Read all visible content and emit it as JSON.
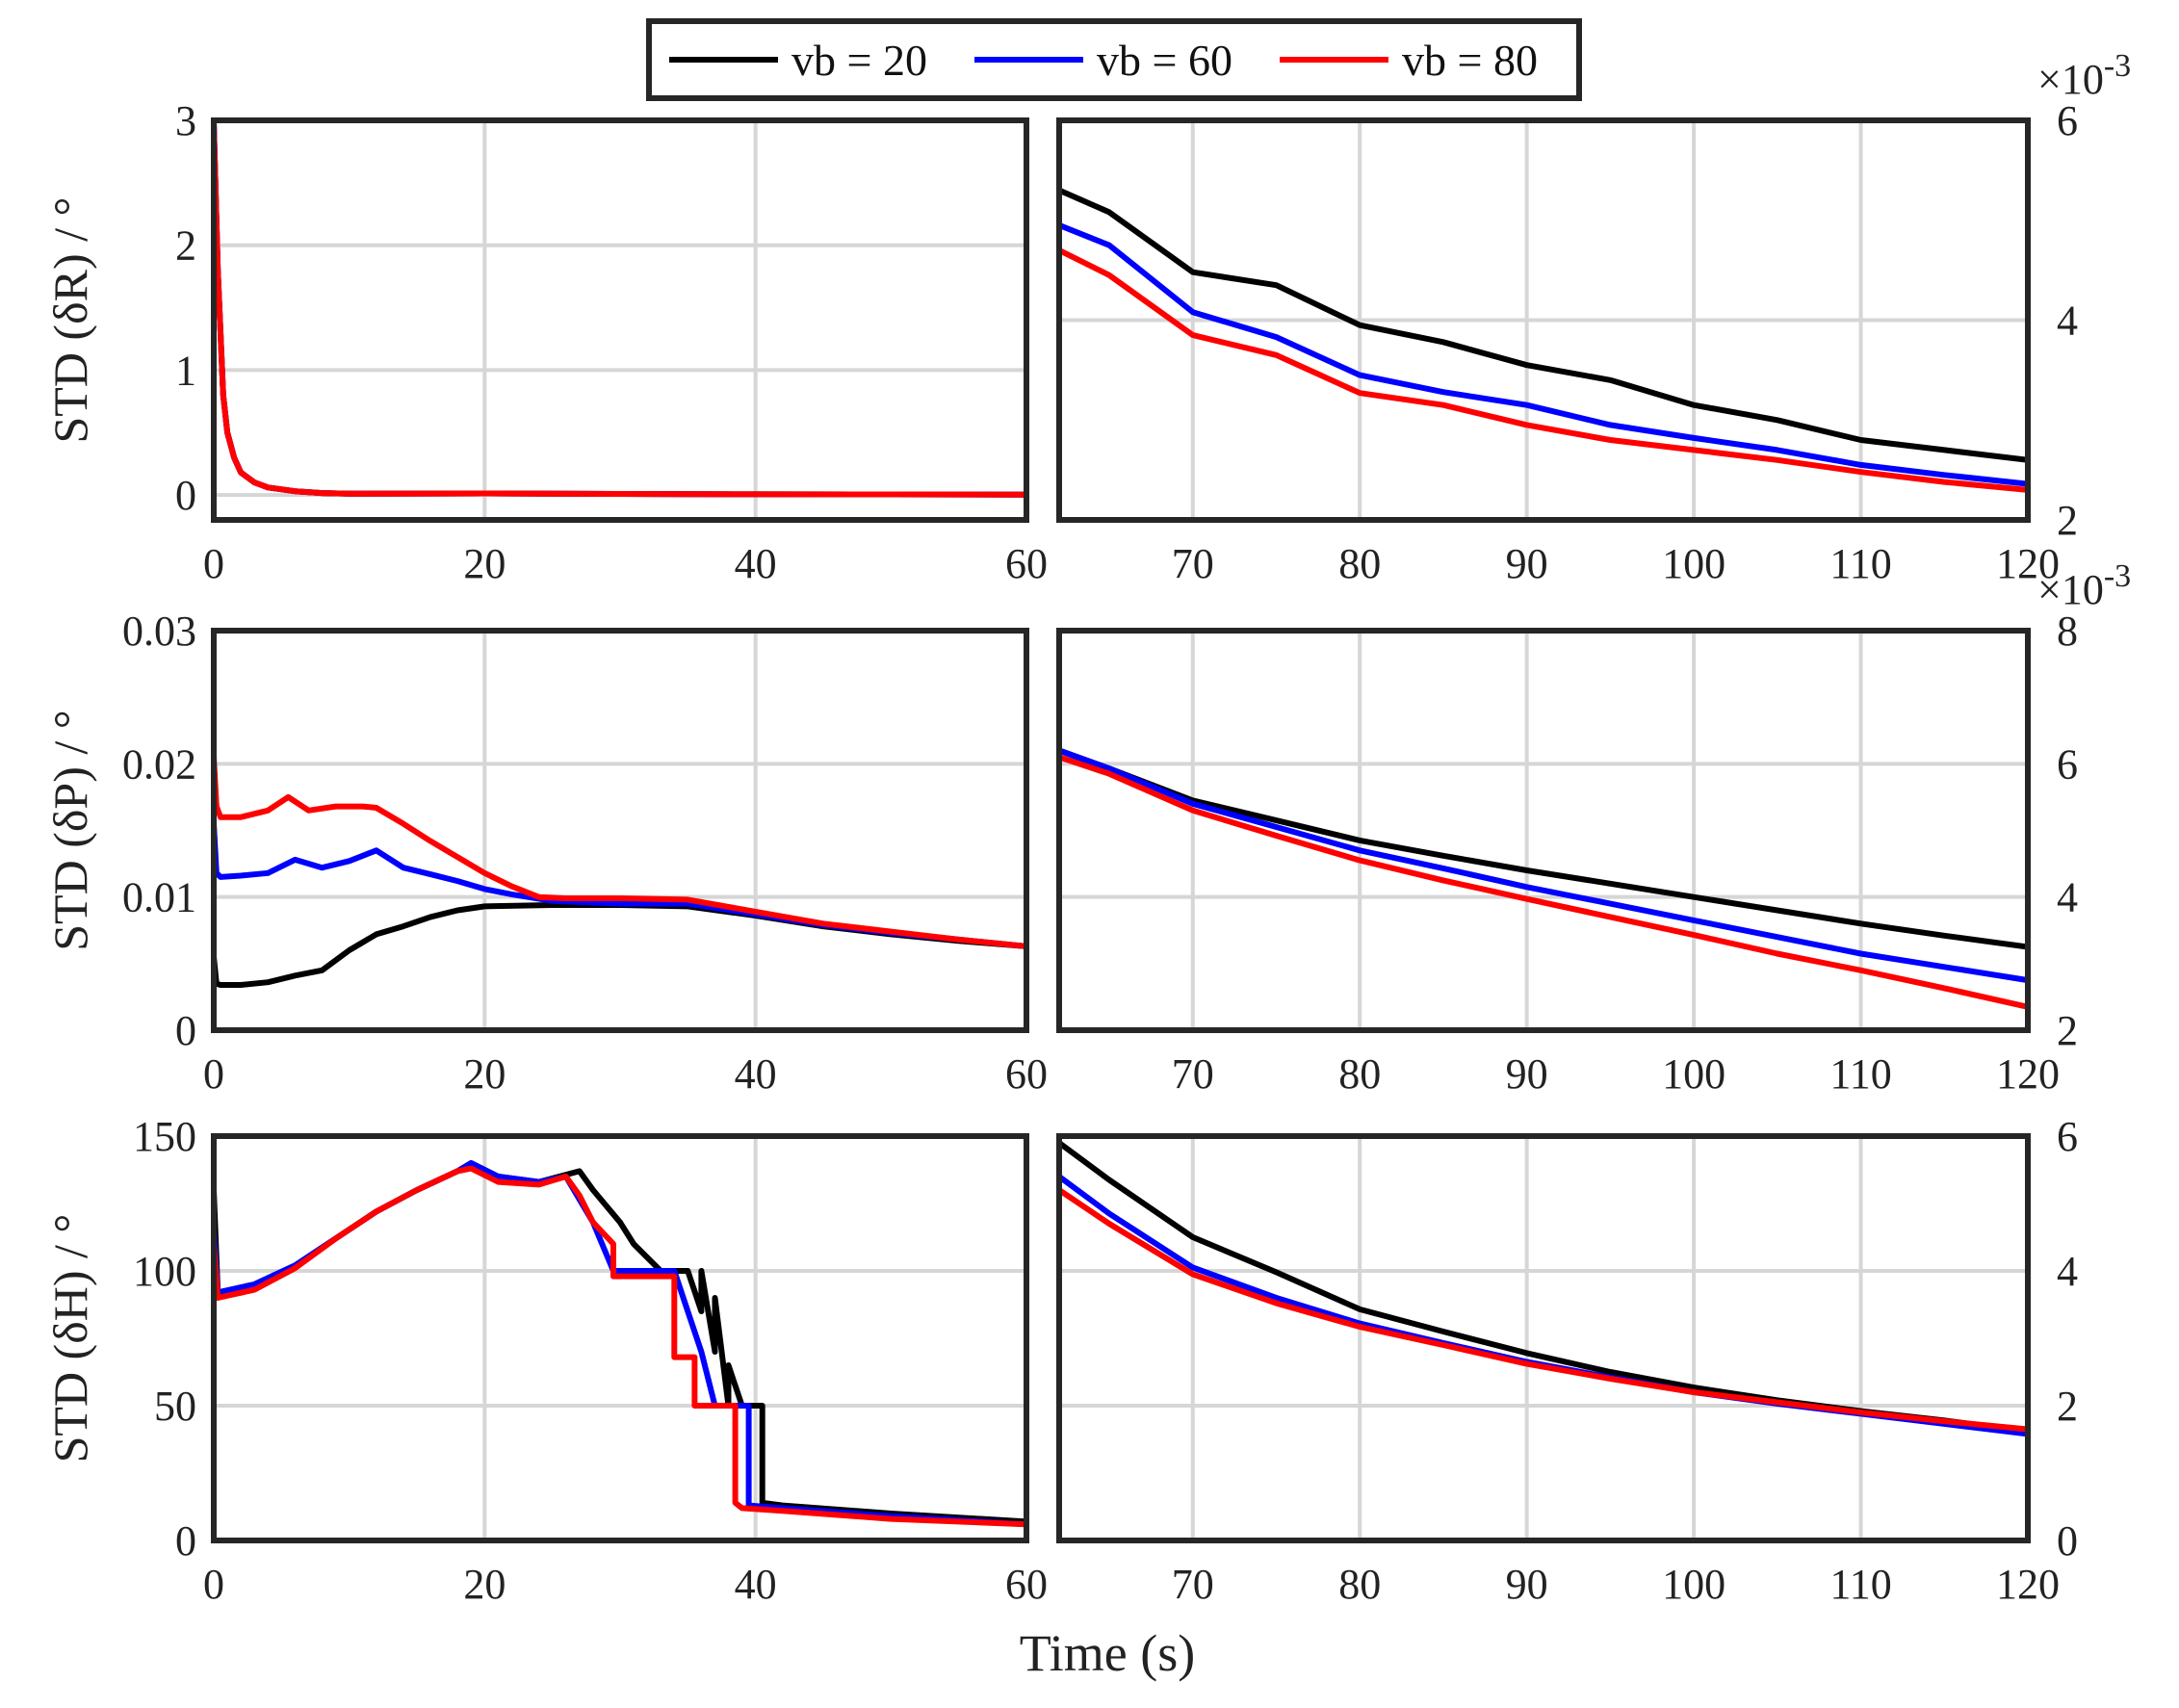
{
  "chart_data": {
    "type": "line",
    "xlabel": "Time (s)",
    "legend": {
      "placement": "top-center",
      "entries": [
        {
          "label": "vb = 20",
          "color": "#000000"
        },
        {
          "label": "vb = 60",
          "color": "#0000ff"
        },
        {
          "label": "vb = 80",
          "color": "#ff0000"
        }
      ]
    },
    "rows": [
      {
        "ylabel": "STD (δR) / °",
        "left": {
          "xlim": [
            0,
            60
          ],
          "xticks": [
            0,
            20,
            40,
            60
          ],
          "ylim": [
            -0.2,
            3
          ],
          "yticks": [
            0,
            1,
            2,
            3
          ],
          "ytick_labels": [
            "0",
            "1",
            "2",
            "3"
          ],
          "series": [
            {
              "name": "vb = 20",
              "x": [
                0,
                0.3,
                0.7,
                1,
                1.5,
                2,
                3,
                4,
                6,
                8,
                10,
                20,
                30,
                40,
                50,
                60
              ],
              "y": [
                2.98,
                1.8,
                0.8,
                0.5,
                0.3,
                0.18,
                0.1,
                0.06,
                0.03,
                0.015,
                0.01,
                0.012,
                0.008,
                0.005,
                0.004,
                0.003
              ]
            },
            {
              "name": "vb = 60",
              "x": [
                0,
                0.3,
                0.7,
                1,
                1.5,
                2,
                3,
                4,
                6,
                8,
                10,
                20,
                30,
                40,
                50,
                60
              ],
              "y": [
                2.98,
                1.8,
                0.8,
                0.5,
                0.3,
                0.18,
                0.1,
                0.06,
                0.03,
                0.015,
                0.01,
                0.012,
                0.008,
                0.005,
                0.004,
                0.003
              ]
            },
            {
              "name": "vb = 80",
              "x": [
                0,
                0.3,
                0.7,
                1,
                1.5,
                2,
                3,
                4,
                6,
                8,
                10,
                20,
                30,
                40,
                50,
                60
              ],
              "y": [
                2.98,
                1.8,
                0.8,
                0.5,
                0.3,
                0.18,
                0.1,
                0.06,
                0.03,
                0.015,
                0.01,
                0.012,
                0.008,
                0.005,
                0.004,
                0.003
              ]
            }
          ]
        },
        "right": {
          "xlim": [
            62,
            120
          ],
          "xticks": [
            70,
            80,
            90,
            100,
            110,
            120
          ],
          "ylim": [
            2,
            6
          ],
          "yticks": [
            2,
            4,
            6
          ],
          "ytick_labels": [
            "2",
            "4",
            "6"
          ],
          "exponent": "×10-3",
          "series": [
            {
              "name": "vb = 20",
              "x": [
                62,
                65,
                70,
                75,
                80,
                85,
                90,
                95,
                100,
                105,
                110,
                115,
                120
              ],
              "y": [
                5.3,
                5.08,
                4.48,
                4.35,
                3.95,
                3.78,
                3.55,
                3.4,
                3.15,
                3.0,
                2.8,
                2.7,
                2.6
              ]
            },
            {
              "name": "vb = 60",
              "x": [
                62,
                65,
                70,
                75,
                80,
                85,
                90,
                95,
                100,
                105,
                110,
                115,
                120
              ],
              "y": [
                4.95,
                4.75,
                4.08,
                3.83,
                3.45,
                3.28,
                3.15,
                2.95,
                2.82,
                2.7,
                2.55,
                2.45,
                2.36
              ]
            },
            {
              "name": "vb = 80",
              "x": [
                62,
                65,
                70,
                75,
                80,
                85,
                90,
                95,
                100,
                105,
                110,
                115,
                120
              ],
              "y": [
                4.7,
                4.45,
                3.85,
                3.65,
                3.27,
                3.15,
                2.95,
                2.8,
                2.7,
                2.6,
                2.48,
                2.38,
                2.3
              ]
            }
          ]
        }
      },
      {
        "ylabel": "STD (δP) / °",
        "left": {
          "xlim": [
            0,
            60
          ],
          "xticks": [
            0,
            20,
            40,
            60
          ],
          "ylim": [
            0,
            0.03
          ],
          "yticks": [
            0,
            0.01,
            0.02,
            0.03
          ],
          "ytick_labels": [
            "0",
            "0.01",
            "0.02",
            "0.03"
          ],
          "series": [
            {
              "name": "vb = 20",
              "x": [
                0,
                0.2,
                0.5,
                2,
                4,
                6,
                8,
                10,
                12,
                14,
                16,
                18,
                20,
                25,
                30,
                35,
                40,
                45,
                50,
                55,
                60
              ],
              "y": [
                0.0055,
                0.0035,
                0.0034,
                0.0034,
                0.0036,
                0.0041,
                0.0045,
                0.006,
                0.0072,
                0.0078,
                0.0085,
                0.009,
                0.0093,
                0.0094,
                0.0094,
                0.0093,
                0.0086,
                0.0078,
                0.0072,
                0.0067,
                0.0063
              ]
            },
            {
              "name": "vb = 60",
              "x": [
                0,
                0.2,
                0.5,
                2,
                4,
                6,
                8,
                10,
                12,
                14,
                16,
                18,
                20,
                22,
                25,
                30,
                35,
                40,
                45,
                50,
                55,
                60
              ],
              "y": [
                0.0155,
                0.0118,
                0.0115,
                0.0116,
                0.0118,
                0.0128,
                0.0122,
                0.0127,
                0.0135,
                0.0122,
                0.0117,
                0.0112,
                0.0106,
                0.0102,
                0.0097,
                0.0095,
                0.0095,
                0.0087,
                0.0079,
                0.0073,
                0.0068,
                0.0063
              ]
            },
            {
              "name": "vb = 80",
              "x": [
                0,
                0.2,
                0.5,
                2,
                4,
                5.5,
                7,
                9,
                11,
                12,
                14,
                16,
                18,
                20,
                22,
                24,
                26,
                30,
                35,
                40,
                45,
                50,
                55,
                60
              ],
              "y": [
                0.0205,
                0.0168,
                0.016,
                0.016,
                0.0165,
                0.0175,
                0.0165,
                0.0168,
                0.0168,
                0.0167,
                0.0155,
                0.0142,
                0.013,
                0.0118,
                0.0108,
                0.01,
                0.0099,
                0.0099,
                0.0098,
                0.0089,
                0.008,
                0.0074,
                0.0068,
                0.0063
              ]
            }
          ]
        },
        "right": {
          "xlim": [
            62,
            120
          ],
          "xticks": [
            70,
            80,
            90,
            100,
            110,
            120
          ],
          "ylim": [
            2,
            8
          ],
          "yticks": [
            2,
            4,
            6,
            8
          ],
          "ytick_labels": [
            "2",
            "4",
            "6",
            "8"
          ],
          "exponent": "×10-3",
          "series": [
            {
              "name": "vb = 20",
              "x": [
                62,
                65,
                70,
                75,
                80,
                85,
                90,
                95,
                100,
                105,
                110,
                115,
                120
              ],
              "y": [
                6.2,
                5.93,
                5.45,
                5.15,
                4.85,
                4.62,
                4.4,
                4.2,
                4.0,
                3.8,
                3.6,
                3.42,
                3.25
              ]
            },
            {
              "name": "vb = 60",
              "x": [
                62,
                65,
                70,
                75,
                80,
                85,
                90,
                95,
                100,
                105,
                110,
                115,
                120
              ],
              "y": [
                6.2,
                5.93,
                5.4,
                5.05,
                4.7,
                4.43,
                4.15,
                3.9,
                3.65,
                3.4,
                3.15,
                2.95,
                2.75
              ]
            },
            {
              "name": "vb = 80",
              "x": [
                62,
                65,
                70,
                75,
                80,
                85,
                90,
                95,
                100,
                105,
                110,
                115,
                120
              ],
              "y": [
                6.1,
                5.85,
                5.3,
                4.92,
                4.55,
                4.25,
                3.97,
                3.7,
                3.43,
                3.15,
                2.9,
                2.63,
                2.35
              ]
            }
          ]
        }
      },
      {
        "ylabel": "STD (δH) / °",
        "left": {
          "xlim": [
            0,
            60
          ],
          "xticks": [
            0,
            20,
            40,
            60
          ],
          "ylim": [
            0,
            150
          ],
          "yticks": [
            0,
            50,
            100,
            150
          ],
          "ytick_labels": [
            "0",
            "50",
            "100",
            "150"
          ],
          "series": [
            {
              "name": "vb = 20",
              "x": [
                0,
                0.3,
                3,
                6,
                9,
                12,
                15,
                18,
                19,
                21,
                24,
                27,
                28,
                30,
                31,
                32,
                33,
                35,
                36,
                36,
                37,
                37,
                38,
                38,
                39,
                40,
                40.5,
                40.5,
                42,
                50,
                60
              ],
              "y": [
                130,
                92,
                95,
                102,
                112,
                122,
                130,
                137,
                140,
                135,
                133,
                137,
                130,
                118,
                110,
                105,
                100,
                100,
                85,
                100,
                70,
                90,
                50,
                65,
                50,
                50,
                50,
                14,
                13,
                10,
                7
              ]
            },
            {
              "name": "vb = 60",
              "x": [
                0,
                0.3,
                3,
                6,
                9,
                12,
                15,
                18,
                19,
                21,
                24,
                26,
                28,
                29.5,
                30,
                32,
                34,
                35,
                36,
                37,
                38,
                39.5,
                39.5,
                42,
                50,
                60
              ],
              "y": [
                115,
                92,
                95,
                102,
                112,
                122,
                130,
                137,
                140,
                135,
                133,
                135,
                118,
                100,
                100,
                100,
                100,
                85,
                70,
                50,
                50,
                50,
                13,
                12,
                9,
                6
              ]
            },
            {
              "name": "vb = 80",
              "x": [
                0,
                0.3,
                3,
                6,
                9,
                12,
                15,
                18,
                19,
                21,
                24,
                26,
                27,
                28,
                29.5,
                29.5,
                32,
                34,
                34,
                35.5,
                35.5,
                38.5,
                38.5,
                39,
                42,
                50,
                60
              ],
              "y": [
                110,
                90,
                93,
                101,
                112,
                122,
                130,
                137,
                138,
                133,
                132,
                135,
                128,
                118,
                110,
                98,
                98,
                98,
                68,
                68,
                50,
                50,
                14,
                12,
                11,
                8,
                6
              ]
            }
          ]
        },
        "right": {
          "xlim": [
            62,
            120
          ],
          "xticks": [
            70,
            80,
            90,
            100,
            110,
            120
          ],
          "ylim": [
            0,
            6
          ],
          "yticks": [
            0,
            2,
            4,
            6
          ],
          "ytick_labels": [
            "0",
            "2",
            "4",
            "6"
          ],
          "exponent": "",
          "series": [
            {
              "name": "vb = 20",
              "x": [
                62,
                65,
                70,
                75,
                80,
                85,
                90,
                95,
                100,
                105,
                110,
                115,
                120
              ],
              "y": [
                5.9,
                5.35,
                4.5,
                3.98,
                3.43,
                3.1,
                2.78,
                2.5,
                2.27,
                2.08,
                1.92,
                1.78,
                1.62
              ]
            },
            {
              "name": "vb = 60",
              "x": [
                62,
                65,
                70,
                75,
                80,
                85,
                90,
                95,
                100,
                105,
                110,
                115,
                120
              ],
              "y": [
                5.4,
                4.85,
                4.05,
                3.6,
                3.22,
                2.93,
                2.65,
                2.42,
                2.2,
                2.03,
                1.88,
                1.73,
                1.58
              ]
            },
            {
              "name": "vb = 80",
              "x": [
                62,
                65,
                70,
                75,
                80,
                85,
                90,
                95,
                100,
                105,
                110,
                115,
                120
              ],
              "y": [
                5.2,
                4.7,
                3.95,
                3.52,
                3.17,
                2.9,
                2.62,
                2.4,
                2.2,
                2.05,
                1.9,
                1.77,
                1.65
              ]
            }
          ]
        }
      }
    ]
  }
}
